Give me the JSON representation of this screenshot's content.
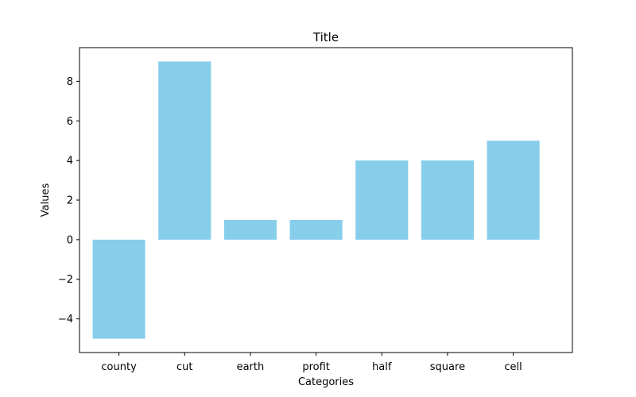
{
  "chart_data": {
    "type": "bar",
    "title": "Title",
    "xlabel": "Categories",
    "ylabel": "Values",
    "categories": [
      "county",
      "cut",
      "earth",
      "profit",
      "half",
      "square",
      "cell"
    ],
    "values": [
      -5,
      9,
      1,
      1,
      4,
      4,
      5
    ],
    "ylim": [
      -5.7,
      9.7
    ],
    "yticks": [
      -4,
      -2,
      0,
      2,
      4,
      6,
      8
    ],
    "ytick_labels": [
      "−4",
      "−2",
      "0",
      "2",
      "4",
      "6",
      "8"
    ],
    "bar_color": "#87ceeb",
    "grid": false,
    "legend": "none"
  }
}
